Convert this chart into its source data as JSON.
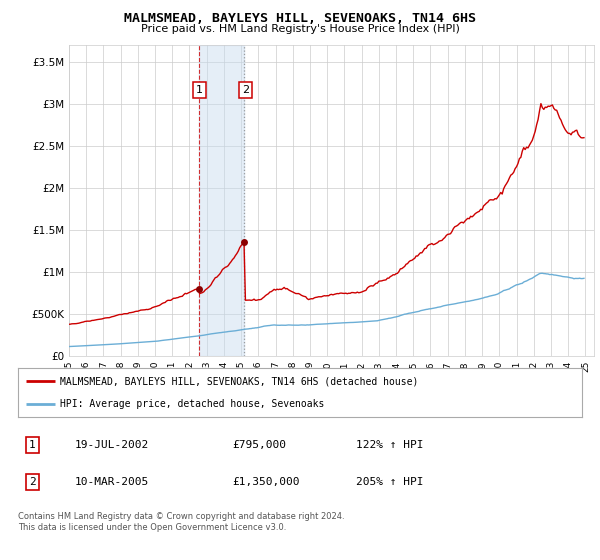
{
  "title": "MALMSMEAD, BAYLEYS HILL, SEVENOAKS, TN14 6HS",
  "subtitle": "Price paid vs. HM Land Registry's House Price Index (HPI)",
  "ylim": [
    0,
    3700000
  ],
  "yticks": [
    0,
    500000,
    1000000,
    1500000,
    2000000,
    2500000,
    3000000,
    3500000
  ],
  "xlim_start": 1995.0,
  "xlim_end": 2025.5,
  "background_color": "#ffffff",
  "plot_bg_color": "#ffffff",
  "grid_color": "#cccccc",
  "sale1": {
    "date_num": 2002.54,
    "price": 795000,
    "label": "1",
    "date_str": "19-JUL-2002",
    "price_str": "£795,000",
    "hpi_str": "122% ↑ HPI"
  },
  "sale2": {
    "date_num": 2005.19,
    "price": 1350000,
    "label": "2",
    "date_str": "10-MAR-2005",
    "price_str": "£1,350,000",
    "hpi_str": "205% ↑ HPI"
  },
  "hpi_line_color": "#6baed6",
  "price_line_color": "#cc0000",
  "sale_marker_color": "#8b0000",
  "shade_color": "#c6dbef",
  "shade_alpha": 0.45,
  "legend_house_label": "MALMSMEAD, BAYLEYS HILL, SEVENOAKS, TN14 6HS (detached house)",
  "legend_hpi_label": "HPI: Average price, detached house, Sevenoaks",
  "footer": "Contains HM Land Registry data © Crown copyright and database right 2024.\nThis data is licensed under the Open Government Licence v3.0.",
  "table_rows": [
    {
      "num": "1",
      "date": "19-JUL-2002",
      "price": "£795,000",
      "hpi": "122% ↑ HPI"
    },
    {
      "num": "2",
      "date": "10-MAR-2005",
      "price": "£1,350,000",
      "hpi": "205% ↑ HPI"
    }
  ]
}
